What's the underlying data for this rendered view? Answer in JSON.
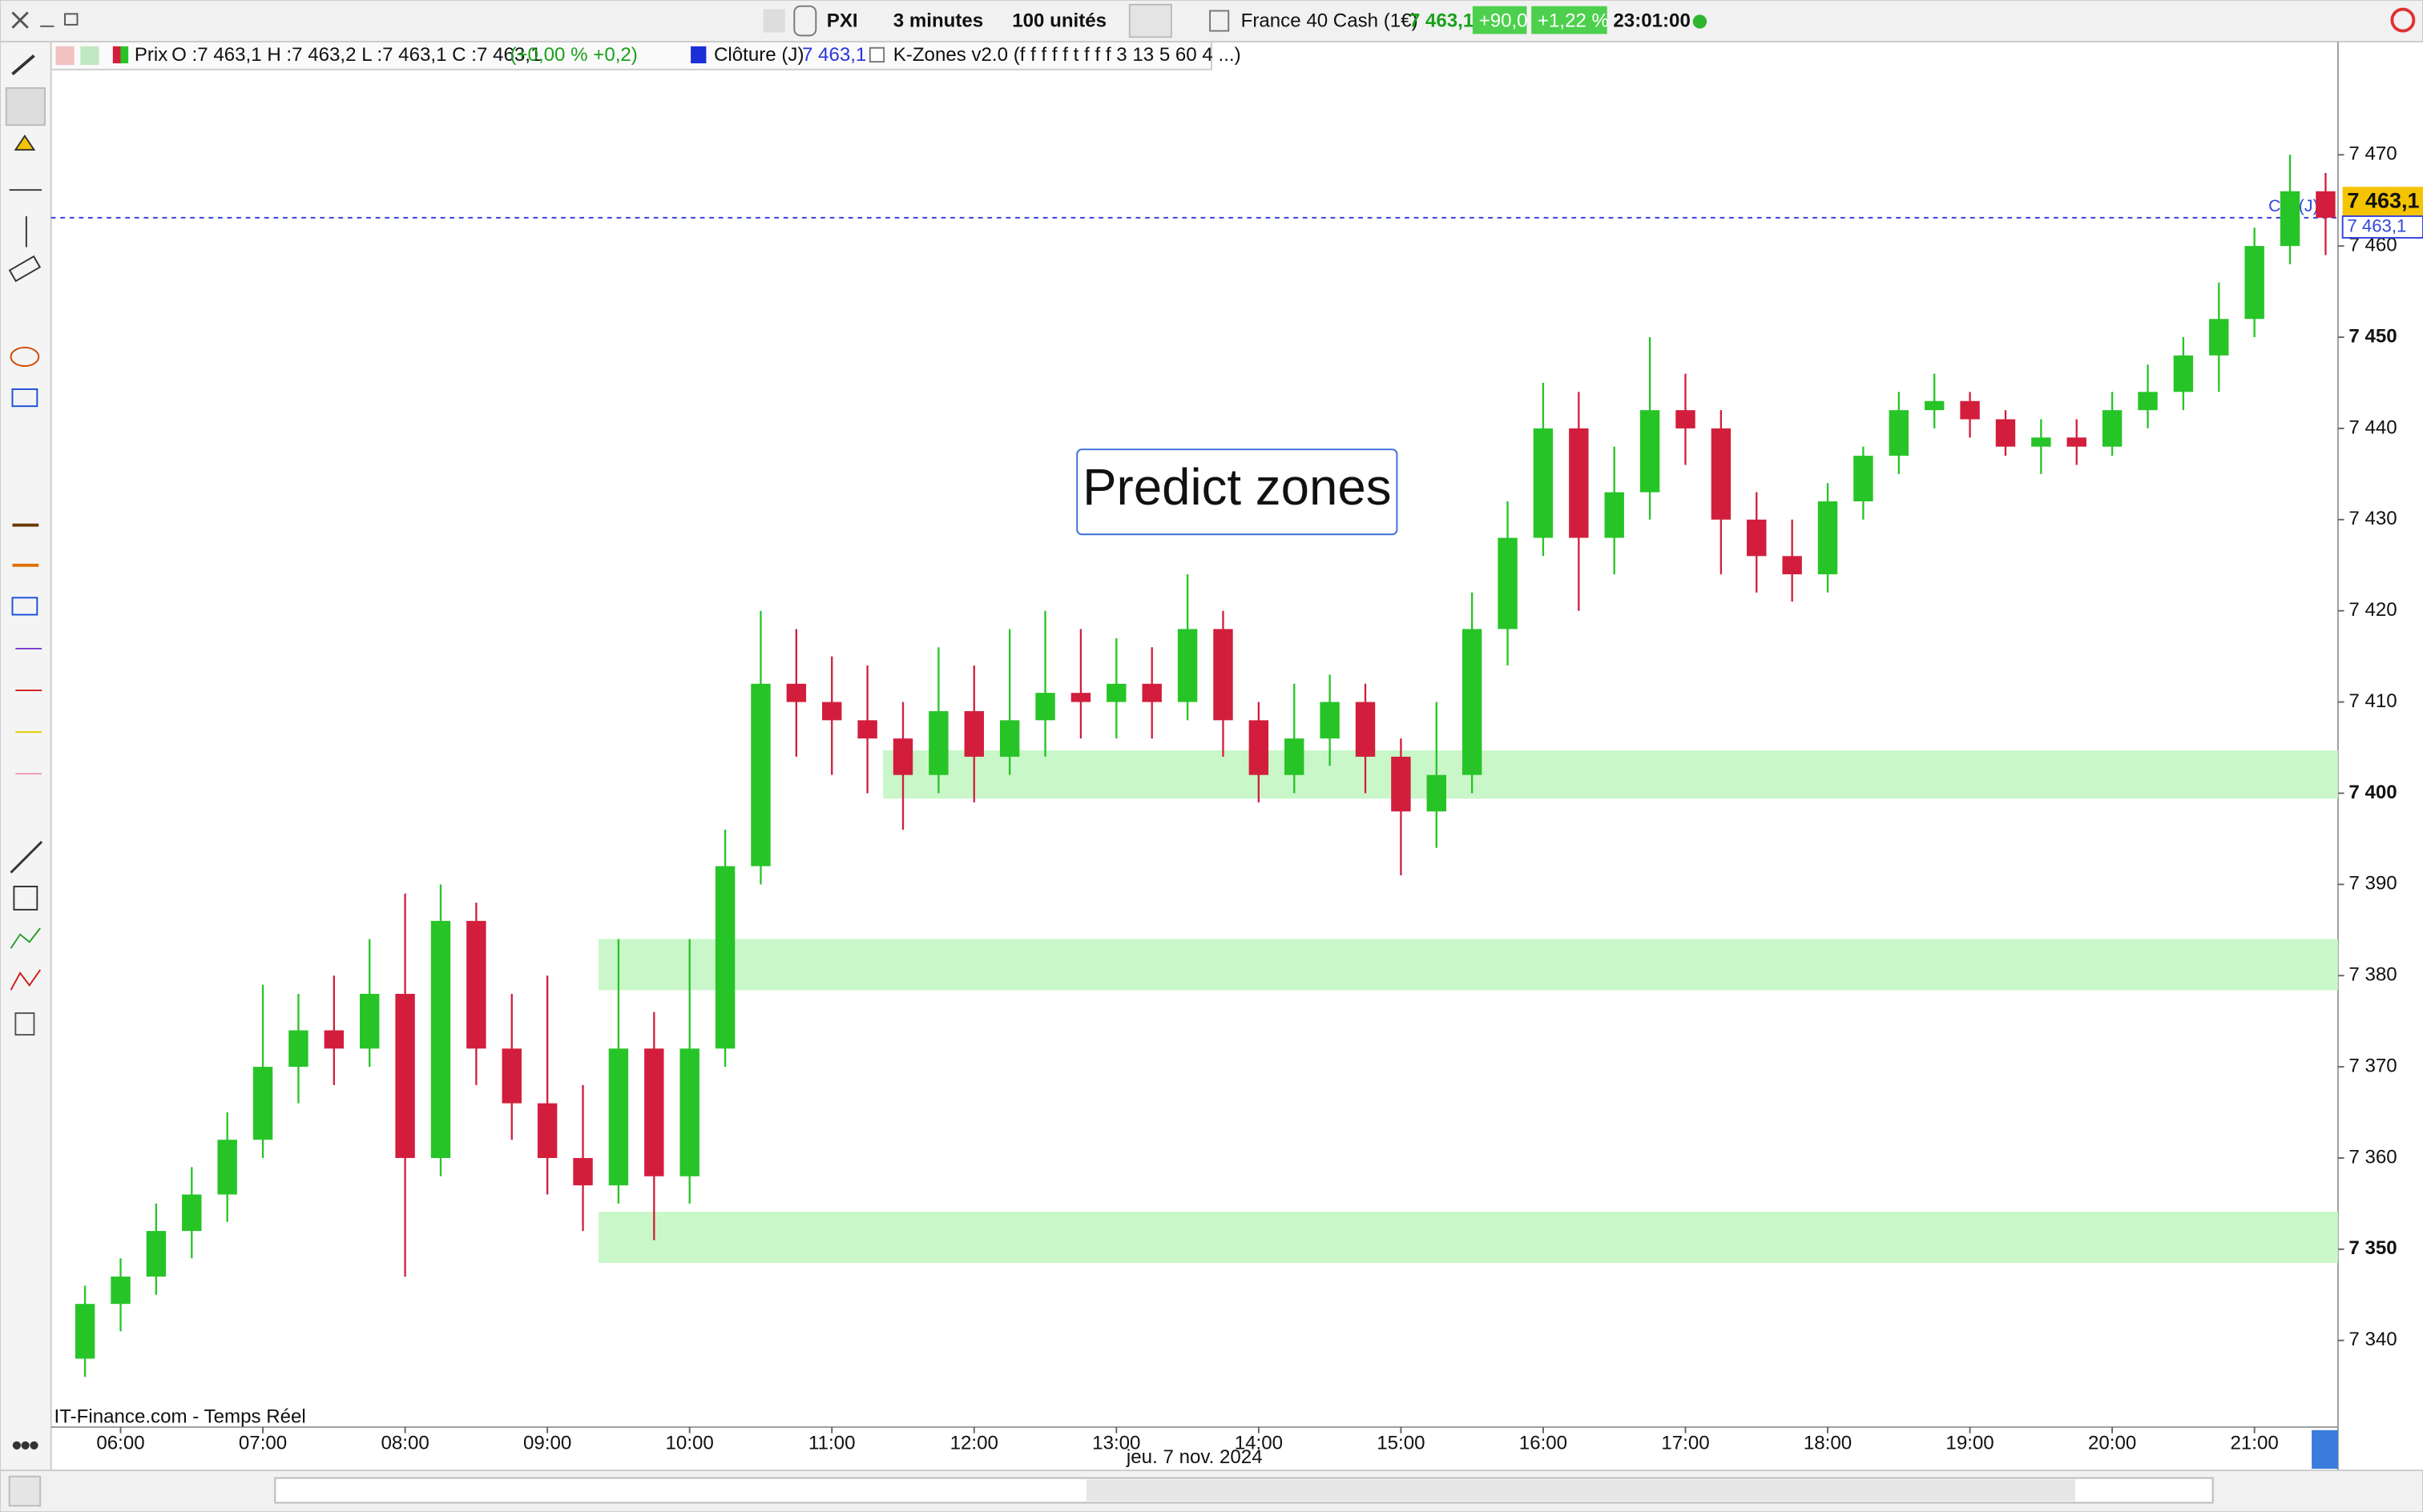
{
  "toolbar": {
    "symbol_code": "PXI",
    "timeframe": "3 minutes",
    "units": "100 unités",
    "instrument": "France 40 Cash (1€)",
    "price": "7 463,1",
    "change": "+90,0",
    "change_pct": "+1,22 %",
    "time": "23:01:00"
  },
  "legend_bar": {
    "price_name": "Prix",
    "ohlc": "O :7 463,1 H :7 463,2 L :7 463,1 C :7 463,1",
    "ohlc_change": "(+0,00 % +0,2)",
    "close_name": "Clôture (J)",
    "close_value": "7 463,1",
    "indicator": "K-Zones v2.0 (f f f f f t f f f 3 13 5 60 4 ...)"
  },
  "chart_data": {
    "type": "candlestick",
    "annotation": "Predict zones",
    "source": "IT-Finance.com - Temps Réel",
    "date_label": "jeu. 7 nov. 2024",
    "close_marker": "Clô (J)",
    "up_color": "#27c427",
    "down_color": "#d21e3c",
    "zone_color": "#c9f7c9",
    "x": [
      5.75,
      6,
      6.25,
      6.5,
      6.75,
      7,
      7.25,
      7.5,
      7.75,
      8,
      8.25,
      8.5,
      8.75,
      9,
      9.25,
      9.5,
      9.75,
      10,
      10.25,
      10.5,
      10.75,
      11,
      11.25,
      11.5,
      11.75,
      12,
      12.25,
      12.5,
      12.75,
      13,
      13.25,
      13.5,
      13.75,
      14,
      14.25,
      14.5,
      14.75,
      15,
      15.25,
      15.5,
      15.75,
      16,
      16.25,
      16.5,
      16.75,
      17,
      17.25,
      17.5,
      17.75,
      18,
      18.25,
      18.5,
      18.75,
      19,
      19.25,
      19.5,
      19.75,
      20,
      20.25,
      20.5,
      20.75,
      21,
      21.25,
      21.5
    ],
    "open": [
      7338,
      7344,
      7347,
      7352,
      7356,
      7362,
      7370,
      7374,
      7372,
      7378,
      7360,
      7386,
      7372,
      7366,
      7360,
      7357,
      7372,
      7358,
      7372,
      7392,
      7412,
      7410,
      7408,
      7406,
      7402,
      7409,
      7404,
      7408,
      7411,
      7410,
      7412,
      7410,
      7418,
      7408,
      7402,
      7406,
      7410,
      7404,
      7398,
      7402,
      7418,
      7428,
      7440,
      7428,
      7433,
      7442,
      7440,
      7430,
      7426,
      7424,
      7432,
      7437,
      7442,
      7443,
      7441,
      7438,
      7439,
      7438,
      7442,
      7444,
      7448,
      7452,
      7460,
      7466
    ],
    "high": [
      7346,
      7349,
      7355,
      7359,
      7365,
      7379,
      7378,
      7380,
      7384,
      7389,
      7390,
      7388,
      7378,
      7380,
      7368,
      7384,
      7376,
      7384,
      7396,
      7420,
      7418,
      7415,
      7414,
      7410,
      7416,
      7414,
      7418,
      7420,
      7418,
      7417,
      7416,
      7424,
      7420,
      7410,
      7412,
      7413,
      7412,
      7406,
      7410,
      7422,
      7432,
      7445,
      7444,
      7438,
      7450,
      7446,
      7442,
      7433,
      7430,
      7434,
      7438,
      7444,
      7446,
      7444,
      7442,
      7441,
      7441,
      7444,
      7447,
      7450,
      7456,
      7462,
      7470,
      7468
    ],
    "low": [
      7336,
      7341,
      7345,
      7349,
      7353,
      7360,
      7366,
      7368,
      7370,
      7347,
      7358,
      7368,
      7362,
      7356,
      7352,
      7355,
      7351,
      7355,
      7370,
      7390,
      7404,
      7402,
      7400,
      7396,
      7400,
      7399,
      7402,
      7404,
      7406,
      7406,
      7406,
      7408,
      7404,
      7399,
      7400,
      7403,
      7400,
      7391,
      7394,
      7400,
      7414,
      7426,
      7420,
      7424,
      7430,
      7436,
      7424,
      7422,
      7421,
      7422,
      7430,
      7435,
      7440,
      7439,
      7437,
      7435,
      7436,
      7437,
      7440,
      7442,
      7444,
      7450,
      7458,
      7459
    ],
    "close": [
      7344,
      7347,
      7352,
      7356,
      7362,
      7370,
      7374,
      7372,
      7378,
      7360,
      7386,
      7372,
      7366,
      7360,
      7357,
      7372,
      7358,
      7372,
      7392,
      7412,
      7410,
      7408,
      7406,
      7402,
      7409,
      7404,
      7408,
      7411,
      7410,
      7412,
      7410,
      7418,
      7408,
      7402,
      7406,
      7410,
      7404,
      7398,
      7402,
      7418,
      7428,
      7440,
      7428,
      7433,
      7442,
      7440,
      7430,
      7426,
      7424,
      7432,
      7437,
      7442,
      7443,
      7441,
      7438,
      7439,
      7438,
      7442,
      7444,
      7448,
      7452,
      7460,
      7466,
      7463.1
    ],
    "zones": [
      {
        "low": 7399.4,
        "high": 7404.7,
        "start": 11.36
      },
      {
        "low": 7378.4,
        "high": 7384.0,
        "start": 9.36
      },
      {
        "low": 7348.5,
        "high": 7354.1,
        "start": 9.36
      }
    ],
    "last_price": {
      "value": 7463.1,
      "label": "7 463,1"
    },
    "xlim": [
      5.511,
      21.587
    ],
    "xticks": [
      {
        "value": 6,
        "label": "06:00"
      },
      {
        "value": 7,
        "label": "07:00"
      },
      {
        "value": 8,
        "label": "08:00"
      },
      {
        "value": 9,
        "label": "09:00"
      },
      {
        "value": 10,
        "label": "10:00"
      },
      {
        "value": 11,
        "label": "11:00"
      },
      {
        "value": 12,
        "label": "12:00"
      },
      {
        "value": 13,
        "label": "13:00"
      },
      {
        "value": 14,
        "label": "14:00"
      },
      {
        "value": 15,
        "label": "15:00"
      },
      {
        "value": 16,
        "label": "16:00"
      },
      {
        "value": 17,
        "label": "17:00"
      },
      {
        "value": 18,
        "label": "18:00"
      },
      {
        "value": 19,
        "label": "19:00"
      },
      {
        "value": 20,
        "label": "20:00"
      },
      {
        "value": 21,
        "label": "21:00"
      }
    ],
    "ylim": [
      7330.5,
      7482.4
    ],
    "yticks": [
      {
        "value": 7340,
        "label": "7 340"
      },
      {
        "value": 7350,
        "label": "7 350"
      },
      {
        "value": 7360,
        "label": "7 360"
      },
      {
        "value": 7370,
        "label": "7 370"
      },
      {
        "value": 7380,
        "label": "7 380"
      },
      {
        "value": 7390,
        "label": "7 390"
      },
      {
        "value": 7400,
        "label": "7 400"
      },
      {
        "value": 7410,
        "label": "7 410"
      },
      {
        "value": 7420,
        "label": "7 420"
      },
      {
        "value": 7430,
        "label": "7 430"
      },
      {
        "value": 7440,
        "label": "7 440"
      },
      {
        "value": 7450,
        "label": "7 450"
      },
      {
        "value": 7460,
        "label": "7 460"
      },
      {
        "value": 7470,
        "label": "7 470"
      }
    ]
  }
}
